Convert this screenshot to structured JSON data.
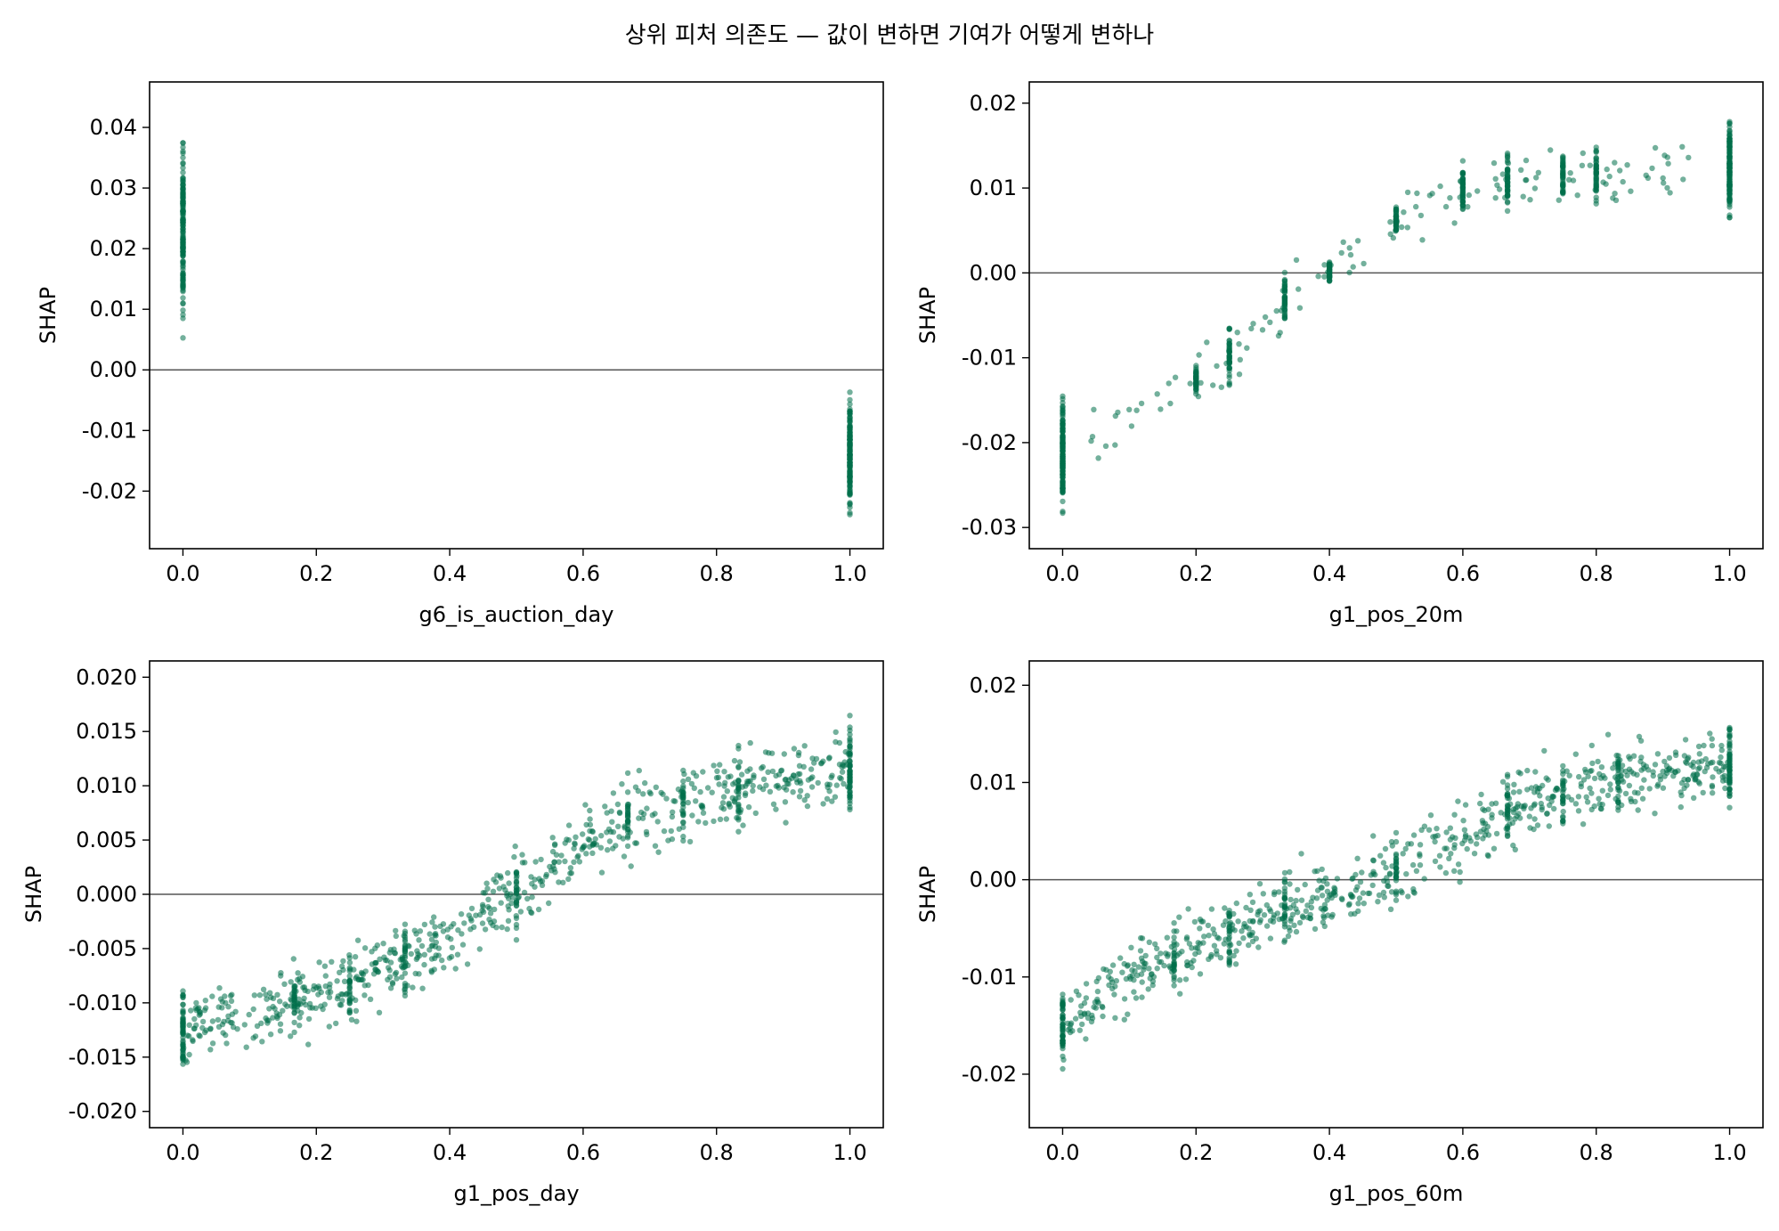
{
  "figure": {
    "suptitle": "상위 피처 의존도 — 값이 변하면 기여가 어떻게 변하나",
    "point_color": "#00704a",
    "zero_line_color": "#555555"
  },
  "chart_data": [
    {
      "type": "scatter",
      "xlabel": "g6_is_auction_day",
      "ylabel": "SHAP",
      "xlim": [
        -0.05,
        1.05
      ],
      "ylim": [
        -0.0295,
        0.0475
      ],
      "xticks": [
        0.0,
        0.2,
        0.4,
        0.6,
        0.8,
        1.0
      ],
      "xtick_labels": [
        "0.0",
        "0.2",
        "0.4",
        "0.6",
        "0.8",
        "1.0"
      ],
      "yticks": [
        -0.02,
        -0.01,
        0.0,
        0.01,
        0.02,
        0.03,
        0.04
      ],
      "ytick_labels": [
        "-0.02",
        "-0.01",
        "0.00",
        "0.01",
        "0.02",
        "0.03",
        "0.04"
      ],
      "zero_line": true,
      "grid": false,
      "point_groups": [
        {
          "x": 0.0,
          "y_range": [
            0.002,
            0.043
          ]
        },
        {
          "x": 1.0,
          "y_range": [
            -0.026,
            -0.001
          ]
        }
      ]
    },
    {
      "type": "scatter",
      "xlabel": "g1_pos_20m",
      "ylabel": "SHAP",
      "xlim": [
        -0.05,
        1.05
      ],
      "ylim": [
        -0.0325,
        0.0225
      ],
      "xticks": [
        0.0,
        0.2,
        0.4,
        0.6,
        0.8,
        1.0
      ],
      "xtick_labels": [
        "0.0",
        "0.2",
        "0.4",
        "0.6",
        "0.8",
        "1.0"
      ],
      "yticks": [
        -0.03,
        -0.02,
        -0.01,
        0.0,
        0.01,
        0.02
      ],
      "ytick_labels": [
        "-0.03",
        "-0.02",
        "-0.01",
        "0.00",
        "0.01",
        "0.02"
      ],
      "zero_line": true,
      "grid": false,
      "point_groups": [
        {
          "x": 0.0,
          "y_range": [
            -0.03,
            -0.013
          ]
        },
        {
          "x": 0.2,
          "y_range": [
            -0.015,
            -0.01
          ]
        },
        {
          "x": 0.25,
          "y_range": [
            -0.015,
            -0.005
          ]
        },
        {
          "x": 0.333,
          "y_range": [
            -0.008,
            0.001
          ]
        },
        {
          "x": 0.4,
          "y_range": [
            -0.002,
            0.002
          ]
        },
        {
          "x": 0.5,
          "y_range": [
            0.003,
            0.009
          ]
        },
        {
          "x": 0.6,
          "y_range": [
            0.006,
            0.014
          ]
        },
        {
          "x": 0.667,
          "y_range": [
            0.006,
            0.016
          ]
        },
        {
          "x": 0.75,
          "y_range": [
            0.007,
            0.016
          ]
        },
        {
          "x": 0.8,
          "y_range": [
            0.007,
            0.016
          ]
        },
        {
          "x": 1.0,
          "y_range": [
            0.005,
            0.02
          ]
        }
      ]
    },
    {
      "type": "scatter",
      "xlabel": "g1_pos_day",
      "ylabel": "SHAP",
      "xlim": [
        -0.05,
        1.05
      ],
      "ylim": [
        -0.0215,
        0.0215
      ],
      "xticks": [
        0.0,
        0.2,
        0.4,
        0.6,
        0.8,
        1.0
      ],
      "xtick_labels": [
        "0.0",
        "0.2",
        "0.4",
        "0.6",
        "0.8",
        "1.0"
      ],
      "yticks": [
        -0.02,
        -0.015,
        -0.01,
        -0.005,
        0.0,
        0.005,
        0.01,
        0.015,
        0.02
      ],
      "ytick_labels": [
        "-0.020",
        "-0.015",
        "-0.010",
        "-0.005",
        "0.000",
        "0.005",
        "0.010",
        "0.015",
        "0.020"
      ],
      "zero_line": true,
      "grid": false,
      "trend": [
        {
          "x": 0.0,
          "y": -0.0125
        },
        {
          "x": 0.2,
          "y": -0.0095
        },
        {
          "x": 0.4,
          "y": -0.004
        },
        {
          "x": 0.5,
          "y": 0.0
        },
        {
          "x": 0.6,
          "y": 0.005
        },
        {
          "x": 0.8,
          "y": 0.0095
        },
        {
          "x": 1.0,
          "y": 0.0115
        }
      ],
      "y_extent": [
        -0.0205,
        0.0195
      ]
    },
    {
      "type": "scatter",
      "xlabel": "g1_pos_60m",
      "ylabel": "SHAP",
      "xlim": [
        -0.05,
        1.05
      ],
      "ylim": [
        -0.0255,
        0.0225
      ],
      "xticks": [
        0.0,
        0.2,
        0.4,
        0.6,
        0.8,
        1.0
      ],
      "xtick_labels": [
        "0.0",
        "0.2",
        "0.4",
        "0.6",
        "0.8",
        "1.0"
      ],
      "yticks": [
        -0.02,
        -0.01,
        0.0,
        0.01,
        0.02
      ],
      "ytick_labels": [
        "-0.02",
        "-0.01",
        "0.00",
        "0.01",
        "0.02"
      ],
      "zero_line": true,
      "grid": false,
      "trend": [
        {
          "x": 0.0,
          "y": -0.015
        },
        {
          "x": 0.1,
          "y": -0.01
        },
        {
          "x": 0.3,
          "y": -0.004
        },
        {
          "x": 0.5,
          "y": 0.001
        },
        {
          "x": 0.667,
          "y": 0.007
        },
        {
          "x": 0.8,
          "y": 0.01
        },
        {
          "x": 1.0,
          "y": 0.012
        }
      ],
      "y_extent": [
        -0.0235,
        0.0205
      ]
    }
  ]
}
